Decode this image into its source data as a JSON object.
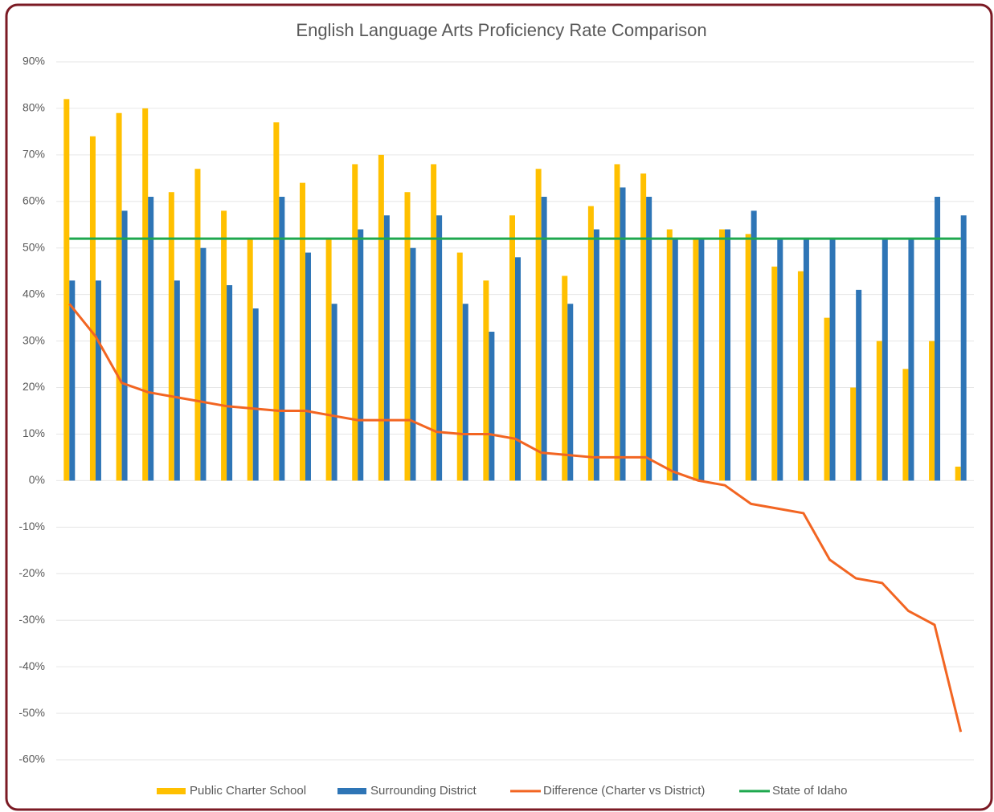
{
  "chart_data": {
    "type": "bar",
    "title": "English Language Arts Proficiency Rate Comparison",
    "categories": [
      null,
      null,
      null,
      null,
      null,
      null,
      null,
      null,
      null,
      null,
      null,
      null,
      null,
      null,
      null,
      null,
      null,
      null,
      null,
      null,
      null,
      null,
      null,
      null,
      null,
      null,
      null,
      null,
      null,
      null,
      null,
      null,
      null,
      null,
      null
    ],
    "series": [
      {
        "name": "Public Charter School",
        "type": "bar",
        "color": "#ffc000",
        "values": [
          82,
          74,
          79,
          80,
          62,
          67,
          58,
          52,
          77,
          64,
          52,
          68,
          70,
          62,
          68,
          49,
          43,
          57,
          67,
          44,
          59,
          68,
          66,
          54,
          52,
          54,
          53,
          46,
          45,
          35,
          20,
          30,
          24,
          30,
          3
        ]
      },
      {
        "name": "Surrounding District",
        "type": "bar",
        "color": "#2e75b6",
        "values": [
          43,
          43,
          58,
          61,
          43,
          50,
          42,
          37,
          61,
          49,
          38,
          54,
          57,
          50,
          57,
          38,
          32,
          48,
          61,
          38,
          54,
          63,
          61,
          52,
          52,
          54,
          58,
          52,
          52,
          52,
          41,
          52,
          52,
          61,
          57
        ]
      },
      {
        "name": "Difference (Charter vs District)",
        "type": "line",
        "color": "#f26522",
        "values": [
          38,
          31,
          21,
          19,
          18,
          17,
          16,
          15.5,
          15,
          15,
          14,
          13,
          13,
          13,
          10.5,
          10,
          10,
          9,
          6,
          5.5,
          5,
          5,
          5,
          2,
          0,
          -1,
          -5,
          -6,
          -7,
          -17,
          -21,
          -22,
          -28,
          -31,
          -54
        ]
      },
      {
        "name": "State of Idaho",
        "type": "line",
        "color": "#1fa84f",
        "values": [
          52,
          52,
          52,
          52,
          52,
          52,
          52,
          52,
          52,
          52,
          52,
          52,
          52,
          52,
          52,
          52,
          52,
          52,
          52,
          52,
          52,
          52,
          52,
          52,
          52,
          52,
          52,
          52,
          52,
          52,
          52,
          52,
          52,
          52,
          52
        ]
      }
    ],
    "ylim": [
      -60,
      90
    ],
    "yticks": [
      {
        "value": -60,
        "label": "-60%"
      },
      {
        "value": -50,
        "label": "-50%"
      },
      {
        "value": -40,
        "label": "-40%"
      },
      {
        "value": -30,
        "label": "-30%"
      },
      {
        "value": -20,
        "label": "-20%"
      },
      {
        "value": -10,
        "label": "-10%"
      },
      {
        "value": 0,
        "label": "0%"
      },
      {
        "value": 10,
        "label": "10%"
      },
      {
        "value": 20,
        "label": "20%"
      },
      {
        "value": 30,
        "label": "30%"
      },
      {
        "value": 40,
        "label": "40%"
      },
      {
        "value": 50,
        "label": "50%"
      },
      {
        "value": 60,
        "label": "60%"
      },
      {
        "value": 70,
        "label": "70%"
      },
      {
        "value": 80,
        "label": "80%"
      },
      {
        "value": 90,
        "label": "90%"
      }
    ],
    "grid": true,
    "legend": "bottom"
  }
}
